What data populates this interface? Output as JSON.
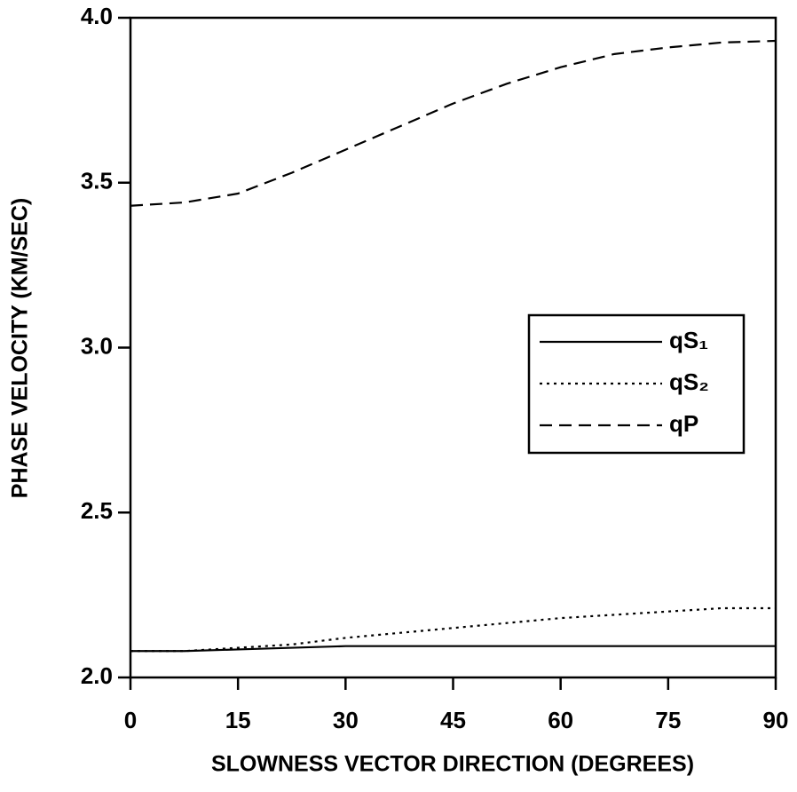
{
  "chart_data": {
    "type": "line",
    "xlabel": "SLOWNESS VECTOR DIRECTION (DEGREES)",
    "ylabel": "PHASE VELOCITY (KM/SEC)",
    "x": [
      0,
      7.5,
      15,
      22.5,
      30,
      37.5,
      45,
      52.5,
      60,
      67.5,
      75,
      82.5,
      90
    ],
    "series": [
      {
        "name": "qS₁",
        "color": "#000000",
        "dash": "solid",
        "values": [
          2.08,
          2.08,
          2.085,
          2.09,
          2.095,
          2.095,
          2.095,
          2.095,
          2.095,
          2.095,
          2.095,
          2.095,
          2.095
        ]
      },
      {
        "name": "qS₂",
        "color": "#000000",
        "dash": "dotted",
        "values": [
          2.08,
          2.08,
          2.09,
          2.1,
          2.12,
          2.135,
          2.15,
          2.165,
          2.18,
          2.19,
          2.2,
          2.21,
          2.21
        ]
      },
      {
        "name": "qP",
        "color": "#000000",
        "dash": "dashed",
        "values": [
          3.43,
          3.44,
          3.467,
          3.53,
          3.6,
          3.67,
          3.74,
          3.8,
          3.85,
          3.89,
          3.91,
          3.925,
          3.93
        ]
      }
    ],
    "xlim": [
      0,
      90
    ],
    "xticks": [
      0,
      15,
      30,
      45,
      60,
      75,
      90
    ],
    "ylim": [
      2.0,
      4.0
    ],
    "yticks": [
      {
        "value": 2.0,
        "label": "2.0"
      },
      {
        "value": 2.5,
        "label": "2.5"
      },
      {
        "value": 3.0,
        "label": "3.0"
      },
      {
        "value": 3.5,
        "label": "3.5"
      },
      {
        "value": 4.0,
        "label": "4.0"
      }
    ],
    "legend": "right"
  }
}
